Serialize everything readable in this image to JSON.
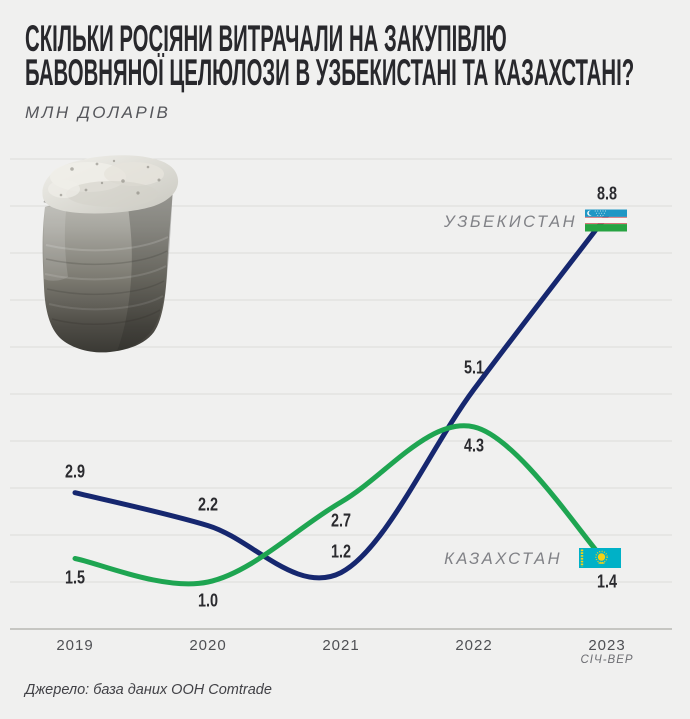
{
  "header": {
    "title_lines": [
      "СКІЛЬКИ РОСІЯНИ ВИТРАЧАЛИ НА ЗАКУПІВЛЮ",
      "БАВОВНЯНОЇ ЦЕЛЮЛОЗИ В УЗБЕКИСТАНІ ТА КАЗАХСТАНІ?"
    ],
    "subtitle": "МЛН ДОЛАРІВ"
  },
  "chart_data": {
    "type": "line",
    "title": "Скільки росіяни витрачали на закупівлю бавовняної целюлози в Узбекистані та Казахстані?",
    "ylabel": "МЛН ДОЛАРІВ",
    "xlabel": "",
    "categories": [
      "2019",
      "2020",
      "2021",
      "2022",
      "2023"
    ],
    "last_category_note": "СІЧ-ВЕР",
    "series": [
      {
        "name": "УЗБЕКИСТАН",
        "color": "#16276f",
        "values": [
          2.9,
          2.2,
          1.2,
          5.1,
          8.8
        ]
      },
      {
        "name": "КАЗАХСТАН",
        "color": "#1ea551",
        "values": [
          1.5,
          1.0,
          2.7,
          4.3,
          1.4
        ]
      }
    ],
    "ylim": [
      0,
      10
    ],
    "gridline_step": 1,
    "grid": true,
    "value_labels_shown": true,
    "legend_position": "inline-at-line-end"
  },
  "footer": {
    "source": "Джерело: база даних ООН Comtrade"
  },
  "colors": {
    "background": "#f0f0ef",
    "gridline": "#dcdcda",
    "axis_line": "#b7b7b4",
    "title_text": "#28282c",
    "value_label_text": "#2b2b2f",
    "country_label_text": "#808186",
    "uzbekistan_line": "#16276f",
    "kazakhstan_line": "#1ea551"
  }
}
